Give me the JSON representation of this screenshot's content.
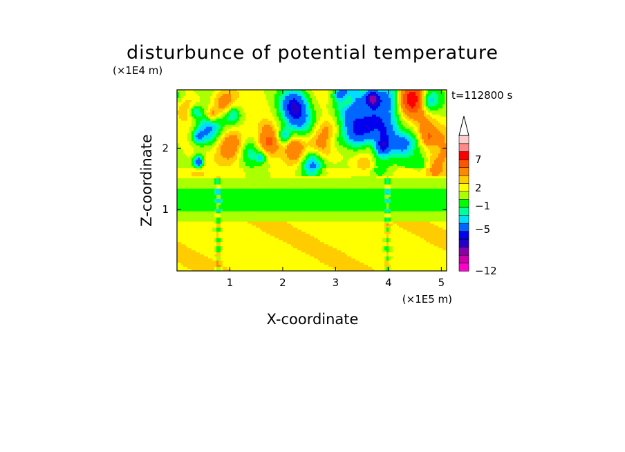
{
  "chart_data": {
    "type": "heatmap",
    "title": "disturbunce of potential temperature",
    "xlabel": "X-coordinate",
    "ylabel": "Z-coordinate",
    "x_unit": "(×1E5 m)",
    "y_unit": "(×1E4 m)",
    "time_label": "t=112800 s",
    "xlim": [
      0,
      5.1
    ],
    "ylim": [
      0,
      2.95
    ],
    "x_ticks": [
      "1",
      "2",
      "3",
      "4",
      "5"
    ],
    "y_ticks": [
      "1",
      "2"
    ],
    "colorbar": {
      "levels": [
        -12,
        -10,
        -8,
        -6,
        -5,
        -3,
        -2,
        -1,
        0,
        1,
        2,
        3,
        5,
        7,
        9,
        11
      ],
      "colors": [
        "#ff00cc",
        "#cc00aa",
        "#8800aa",
        "#2200cc",
        "#0000ee",
        "#0066ff",
        "#00ddff",
        "#00ff99",
        "#00ff00",
        "#aaff00",
        "#ffff00",
        "#ffcc00",
        "#ff8800",
        "#ff5500",
        "#ff0000",
        "#ff8888",
        "#ffcccc"
      ],
      "labels": [
        "7",
        "2",
        "−1",
        "−5",
        "−12"
      ],
      "extend_max": true
    },
    "grid": false
  }
}
